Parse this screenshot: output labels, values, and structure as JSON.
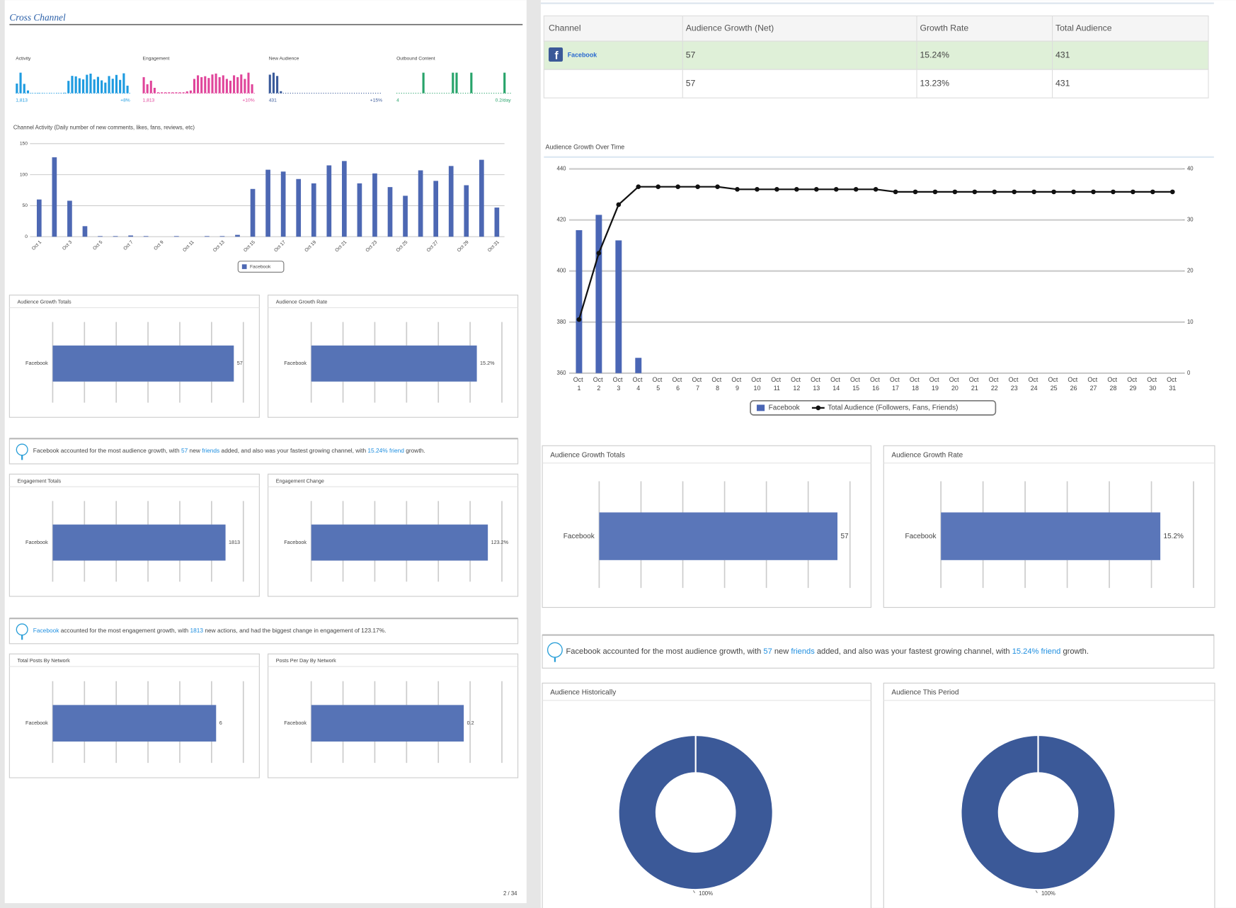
{
  "page_title": "Cross Channel",
  "page_number": "2 / 34",
  "table": {
    "headers": [
      "Channel",
      "Audience Growth (Net)",
      "Growth Rate",
      "Total Audience"
    ],
    "rows": [
      [
        "Facebook",
        57,
        "15.24%",
        431
      ],
      [
        null,
        57,
        "13.23%",
        431
      ]
    ]
  },
  "insights": [
    {
      "parts": [
        {
          "text": "Facebook accounted for the most audience growth, with ",
          "highlight": false
        },
        {
          "text": "57",
          "highlight": true
        },
        {
          "text": " new ",
          "highlight": false
        },
        {
          "text": "friends",
          "highlight": true
        },
        {
          "text": " added, and also was your fastest growing channel, with ",
          "highlight": false
        },
        {
          "text": "15.24% friend",
          "highlight": true
        },
        {
          "text": " growth.",
          "highlight": false
        }
      ]
    },
    {
      "parts": [
        {
          "text": "Facebook",
          "highlight": true
        },
        {
          "text": " accounted for the most engagement growth, with ",
          "highlight": false
        },
        {
          "text": "1813",
          "highlight": true
        },
        {
          "text": " new actions, and had the biggest change in engagement of 123.17%.",
          "highlight": false
        }
      ]
    },
    {
      "parts": [
        {
          "text": "Facebook accounted for the most audience growth, with ",
          "highlight": false
        },
        {
          "text": "57",
          "highlight": true
        },
        {
          "text": " new ",
          "highlight": false
        },
        {
          "text": "friends",
          "highlight": true
        },
        {
          "text": " added, and also was your fastest growing channel, with ",
          "highlight": false
        },
        {
          "text": "15.24% friend",
          "highlight": true
        },
        {
          "text": " growth.",
          "highlight": false
        }
      ]
    }
  ],
  "chart_data": [
    {
      "type": "sparkline",
      "title": "Activity",
      "color": "#1e9be0",
      "start_label": "1,813",
      "change_label": "+8%",
      "values": [
        60,
        128,
        58,
        17,
        1,
        1,
        2,
        1,
        0,
        1,
        0,
        1,
        1,
        3,
        77,
        108,
        105,
        93,
        86,
        115,
        122,
        86,
        102,
        80,
        66,
        107,
        90,
        114,
        83,
        124,
        47
      ]
    },
    {
      "type": "sparkline",
      "title": "Engagement",
      "color": "#e0449a",
      "start_label": "1,813",
      "change_label": "+10%",
      "values": [
        18,
        10,
        14,
        6,
        1,
        1,
        1,
        1,
        1,
        1,
        1,
        1,
        2,
        3,
        16,
        20,
        18,
        19,
        17,
        21,
        22,
        18,
        20,
        16,
        14,
        20,
        18,
        21,
        16,
        23,
        10
      ]
    },
    {
      "type": "sparkline",
      "title": "New Audience",
      "color": "#3a5a9a",
      "start_label": "431",
      "change_label": "+15%",
      "values": [
        28,
        31,
        26,
        3,
        0,
        0,
        0,
        0,
        0,
        0,
        0,
        0,
        0,
        0,
        0,
        0,
        0,
        0,
        0,
        0,
        0,
        0,
        0,
        0,
        0,
        0,
        0,
        0,
        0,
        0,
        0
      ]
    },
    {
      "type": "sparkline",
      "title": "Outbound Content",
      "color": "#27a36a",
      "start_label": "4",
      "change_label": "0.2/day",
      "values": [
        0,
        0,
        0,
        0,
        0,
        0,
        0,
        1,
        0,
        0,
        0,
        0,
        0,
        0,
        0,
        1,
        1,
        0,
        0,
        0,
        1,
        0,
        0,
        0,
        0,
        0,
        0,
        0,
        0,
        1,
        0
      ]
    },
    {
      "type": "bar",
      "title": "Channel Activity (Daily number of new comments, likes, fans, reviews, etc)",
      "categories": [
        "Oct 1",
        null,
        "Oct 3",
        null,
        "Oct 5",
        null,
        "Oct 7",
        null,
        "Oct 9",
        null,
        "Oct 11",
        null,
        "Oct 13",
        null,
        "Oct 15",
        null,
        "Oct 17",
        null,
        "Oct 19",
        null,
        "Oct 21",
        null,
        "Oct 23",
        null,
        "Oct 25",
        null,
        "Oct 27",
        null,
        "Oct 29",
        null,
        "Oct 31"
      ],
      "series": [
        {
          "name": "Facebook",
          "color": "#4d68b3",
          "values": [
            60,
            128,
            58,
            17,
            1,
            1,
            2,
            1,
            0,
            1,
            0,
            1,
            1,
            3,
            77,
            108,
            105,
            93,
            86,
            115,
            122,
            86,
            102,
            80,
            66,
            107,
            90,
            114,
            83,
            124,
            47
          ]
        }
      ],
      "ylim": [
        0,
        150
      ],
      "yticks": [
        0,
        50,
        100,
        150
      ],
      "grid": true,
      "legend": "bottom"
    },
    {
      "type": "hbar",
      "title": "Audience Growth Totals",
      "categories": [
        "Facebook"
      ],
      "values": [
        57
      ],
      "xlim": [
        0,
        60
      ],
      "color": "#5673b6"
    },
    {
      "type": "hbar",
      "title": "Audience Growth Rate",
      "categories": [
        "Facebook"
      ],
      "values": [
        15.2
      ],
      "value_labels": [
        "15.2%"
      ],
      "xlim": [
        0,
        17.5
      ],
      "color": "#5673b6"
    },
    {
      "type": "hbar",
      "title": "Engagement Totals",
      "categories": [
        "Facebook"
      ],
      "values": [
        1813
      ],
      "xlim": [
        0,
        2000
      ],
      "color": "#5673b6"
    },
    {
      "type": "hbar",
      "title": "Engagement Change",
      "categories": [
        "Facebook"
      ],
      "values": [
        123.2
      ],
      "value_labels": [
        "123.2%"
      ],
      "xlim": [
        0,
        133
      ],
      "color": "#5673b6"
    },
    {
      "type": "hbar",
      "title": "Total Posts By Network",
      "categories": [
        "Facebook"
      ],
      "values": [
        6
      ],
      "xlim": [
        0,
        7
      ],
      "color": "#5673b6"
    },
    {
      "type": "hbar",
      "title": "Posts Per Day By Network",
      "categories": [
        "Facebook"
      ],
      "values": [
        0.2
      ],
      "xlim": [
        0,
        0.25
      ],
      "color": "#5673b6"
    },
    {
      "type": "combo",
      "title": "Audience Growth Over Time",
      "categories": [
        "Oct 1",
        "Oct 2",
        "Oct 3",
        "Oct 4",
        "Oct 5",
        "Oct 6",
        "Oct 7",
        "Oct 8",
        "Oct 9",
        "Oct 10",
        "Oct 11",
        "Oct 12",
        "Oct 13",
        "Oct 14",
        "Oct 15",
        "Oct 16",
        "Oct 17",
        "Oct 18",
        "Oct 19",
        "Oct 20",
        "Oct 21",
        "Oct 22",
        "Oct 23",
        "Oct 24",
        "Oct 25",
        "Oct 26",
        "Oct 27",
        "Oct 28",
        "Oct 29",
        "Oct 30",
        "Oct 31"
      ],
      "series": [
        {
          "name": "Facebook",
          "type": "bar",
          "axis": "y2",
          "color": "#4a66b5",
          "values": [
            28,
            31,
            26,
            3,
            0,
            0,
            0,
            0,
            0,
            0,
            0,
            0,
            0,
            0,
            0,
            0,
            0,
            0,
            0,
            0,
            0,
            0,
            0,
            0,
            0,
            0,
            0,
            0,
            0,
            0,
            0
          ]
        },
        {
          "name": "Total Audience (Followers, Fans, Friends)",
          "type": "line",
          "color": "#111111",
          "values": [
            381,
            407,
            426,
            433,
            433,
            433,
            433,
            433,
            432,
            432,
            432,
            432,
            432,
            432,
            432,
            432,
            431,
            431,
            431,
            431,
            431,
            431,
            431,
            431,
            431,
            431,
            431,
            431,
            431,
            431,
            431
          ]
        }
      ],
      "ylim": [
        360,
        440
      ],
      "yticks": [
        360,
        380,
        400,
        420,
        440
      ],
      "y2lim": [
        0,
        40
      ],
      "y2ticks": [
        0,
        10,
        20,
        30,
        40
      ],
      "grid": true,
      "legend": "bottom"
    },
    {
      "type": "hbar",
      "title": "Audience Growth Totals",
      "categories": [
        "Facebook"
      ],
      "values": [
        57
      ],
      "xlim": [
        0,
        60
      ],
      "color": "#5a76b9"
    },
    {
      "type": "hbar",
      "title": "Audience Growth Rate",
      "categories": [
        "Facebook"
      ],
      "values": [
        15.2
      ],
      "value_labels": [
        "15.2%"
      ],
      "xlim": [
        0,
        17.5
      ],
      "color": "#5a76b9"
    },
    {
      "type": "donut",
      "title": "Audience Historically",
      "categories": [
        "Facebook"
      ],
      "values": [
        100
      ],
      "value_labels": [
        "100%"
      ],
      "color": "#3b5998"
    },
    {
      "type": "donut",
      "title": "Audience This Period",
      "categories": [
        "Facebook"
      ],
      "values": [
        100
      ],
      "value_labels": [
        "100%"
      ],
      "color": "#3b5998"
    }
  ]
}
